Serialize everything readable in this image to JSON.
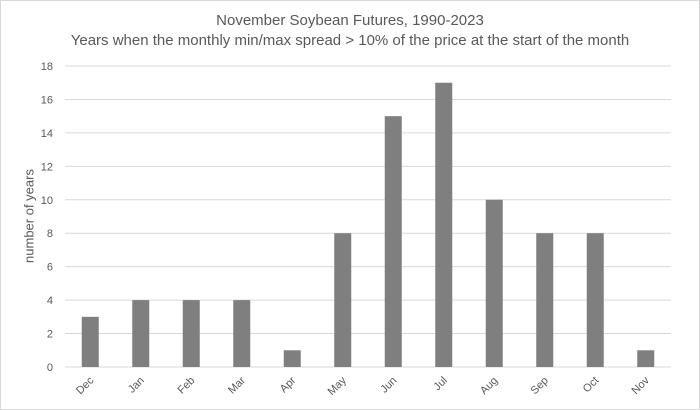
{
  "chart_data": {
    "type": "bar",
    "title": "November Soybean Futures, 1990-2023",
    "subtitle": "Years when the monthly min/max spread > 10% of the price at the start of the month",
    "xlabel": "",
    "ylabel": "number of years",
    "categories": [
      "Dec",
      "Jan",
      "Feb",
      "Mar",
      "Apr",
      "May",
      "Jun",
      "Jul",
      "Aug",
      "Sep",
      "Oct",
      "Nov"
    ],
    "values": [
      3,
      4,
      4,
      4,
      1,
      8,
      15,
      17,
      10,
      8,
      8,
      1
    ],
    "ylim": [
      0,
      18
    ],
    "yticks": [
      0,
      2,
      4,
      6,
      8,
      10,
      12,
      14,
      16,
      18
    ],
    "grid": true,
    "legend": "none",
    "bar_color": "#7f7f7f",
    "grid_color": "#d9d9d9",
    "text_color": "#595959"
  }
}
